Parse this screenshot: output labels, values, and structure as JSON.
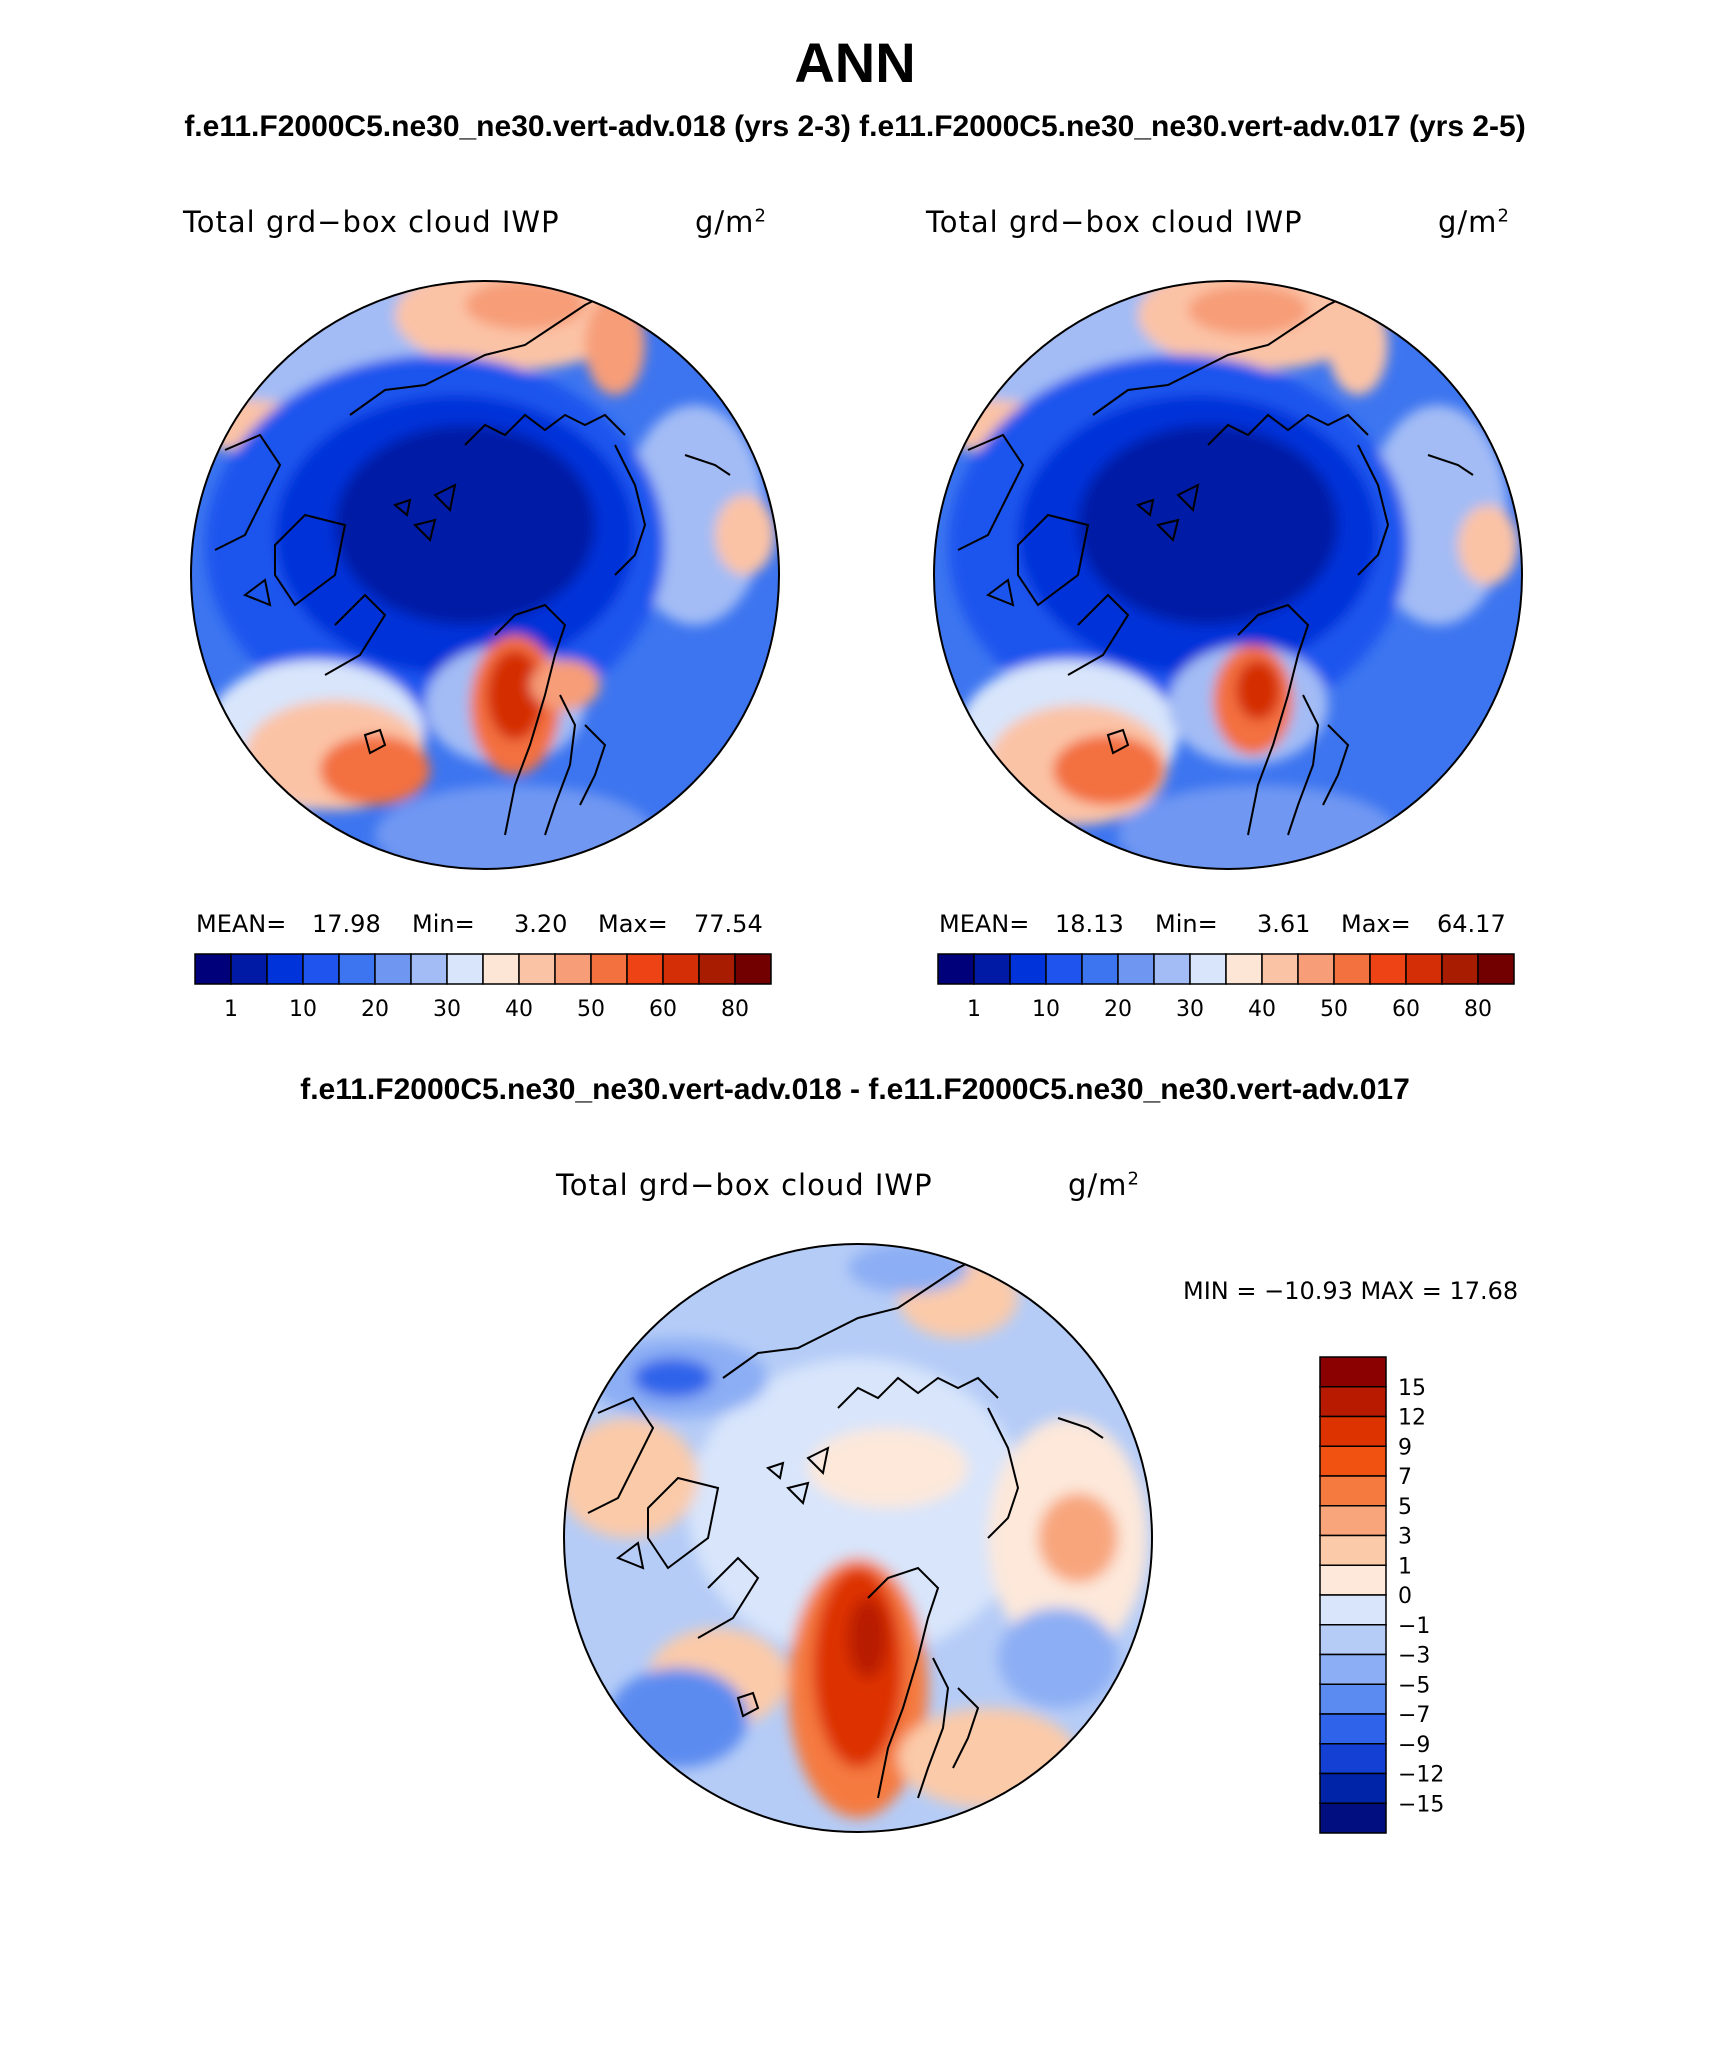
{
  "title": "ANN",
  "subtitle_top": "f.e11.F2000C5.ne30_ne30.vert-adv.018 (yrs 2-3) f.e11.F2000C5.ne30_ne30.vert-adv.017 (yrs 2-5)",
  "subtitle_diff": "f.e11.F2000C5.ne30_ne30.vert-adv.018 - f.e11.F2000C5.ne30_ne30.vert-adv.017",
  "panels": [
    {
      "variable": "Total grd−box cloud IWP",
      "units": "g/m",
      "units_sup": "2",
      "mean_label": "MEAN=",
      "mean": "17.98",
      "min_label": "Min=",
      "min": "3.20",
      "max_label": "Max=",
      "max": "77.54"
    },
    {
      "variable": "Total grd−box cloud IWP",
      "units": "g/m",
      "units_sup": "2",
      "mean_label": "MEAN=",
      "mean": "18.13",
      "min_label": "Min=",
      "min": "3.61",
      "max_label": "Max=",
      "max": "64.17"
    }
  ],
  "diff_panel": {
    "variable": "Total grd−box cloud IWP",
    "units": "g/m",
    "units_sup": "2",
    "minmax_text": "MIN = −10.93 MAX =   17.68"
  },
  "colorbar": {
    "ticks": [
      "1",
      "10",
      "20",
      "30",
      "40",
      "50",
      "60",
      "80"
    ],
    "colors": [
      "#00007a",
      "#001aa6",
      "#0033d9",
      "#1f55ee",
      "#3d75f0",
      "#6f97f2",
      "#a3bcf5",
      "#d8e5fb",
      "#fde6d6",
      "#fbc3a6",
      "#f79d78",
      "#f3703f",
      "#ee4415",
      "#d42e06",
      "#a81c02",
      "#730000"
    ]
  },
  "diff_colorbar": {
    "ticks": [
      "15",
      "12",
      "9",
      "7",
      "5",
      "3",
      "1",
      "0",
      "−1",
      "−3",
      "−5",
      "−7",
      "−9",
      "−12",
      "−15"
    ],
    "colors": [
      "#8b0000",
      "#b81a00",
      "#dd3300",
      "#f25211",
      "#f57a3f",
      "#f8a57c",
      "#fbcaa9",
      "#fde8da",
      "#d8e5fb",
      "#b5ccf7",
      "#8caef4",
      "#5b8bf0",
      "#2f63ea",
      "#1440d4",
      "#0024a8",
      "#000e80"
    ]
  },
  "map_palette": {
    "deep_blue": "#0014a0",
    "blue": "#1f55ee",
    "mid_blue": "#3d75f0",
    "light_blue": "#a3bcf5",
    "pale_blue": "#d8e5fb",
    "peach": "#fde6d6",
    "orange": "#f79d78",
    "red": "#ee4415",
    "dark_red": "#b81a00"
  }
}
